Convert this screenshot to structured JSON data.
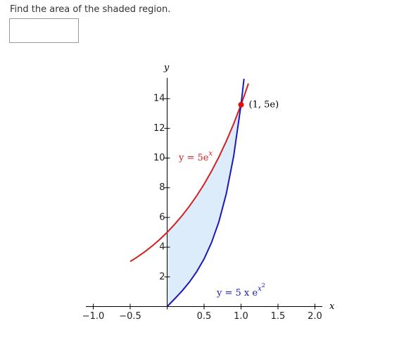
{
  "question": "Find the area of the shaded region.",
  "chart_data": {
    "type": "line",
    "x": [
      -0.5,
      -0.4,
      -0.3,
      -0.2,
      -0.1,
      0,
      0.1,
      0.2,
      0.3,
      0.4,
      0.5,
      0.6,
      0.7,
      0.8,
      0.9,
      1.0,
      1.04,
      1.1
    ],
    "series": [
      {
        "name": "y = 5e",
        "exponent": "x",
        "color": "#d42020",
        "values": [
          3.03,
          3.35,
          3.7,
          4.09,
          4.52,
          5,
          5.53,
          6.11,
          6.75,
          7.46,
          8.24,
          9.11,
          10.07,
          11.13,
          12.3,
          13.59,
          14.15,
          15.02
        ]
      },
      {
        "name": "y = 5 x e",
        "exponent": "x",
        "exponent_exponent": "2",
        "color": "#1a1ab4",
        "values": [
          null,
          null,
          null,
          null,
          null,
          0,
          0.51,
          1.04,
          1.64,
          2.35,
          3.21,
          4.3,
          5.71,
          7.59,
          10.12,
          13.59,
          15.34,
          null
        ]
      }
    ],
    "point": {
      "x": 1,
      "y": 13.59,
      "label": "(1, 5e)",
      "color": "#e01010"
    },
    "shade_color": "#dcecfb",
    "xlabel": "x",
    "ylabel": "y",
    "xlim": [
      -1.1,
      2.1
    ],
    "ylim": [
      0,
      15.4
    ],
    "xticks": [
      {
        "value": -1.0,
        "label": "−1.0"
      },
      {
        "value": -0.5,
        "label": "−0.5"
      },
      {
        "value": 0.5,
        "label": "0.5"
      },
      {
        "value": 1.0,
        "label": "1.0"
      },
      {
        "value": 1.5,
        "label": "1.5"
      },
      {
        "value": 2.0,
        "label": "2.0"
      }
    ],
    "yticks": [
      2,
      4,
      6,
      8,
      10,
      12,
      14
    ]
  }
}
